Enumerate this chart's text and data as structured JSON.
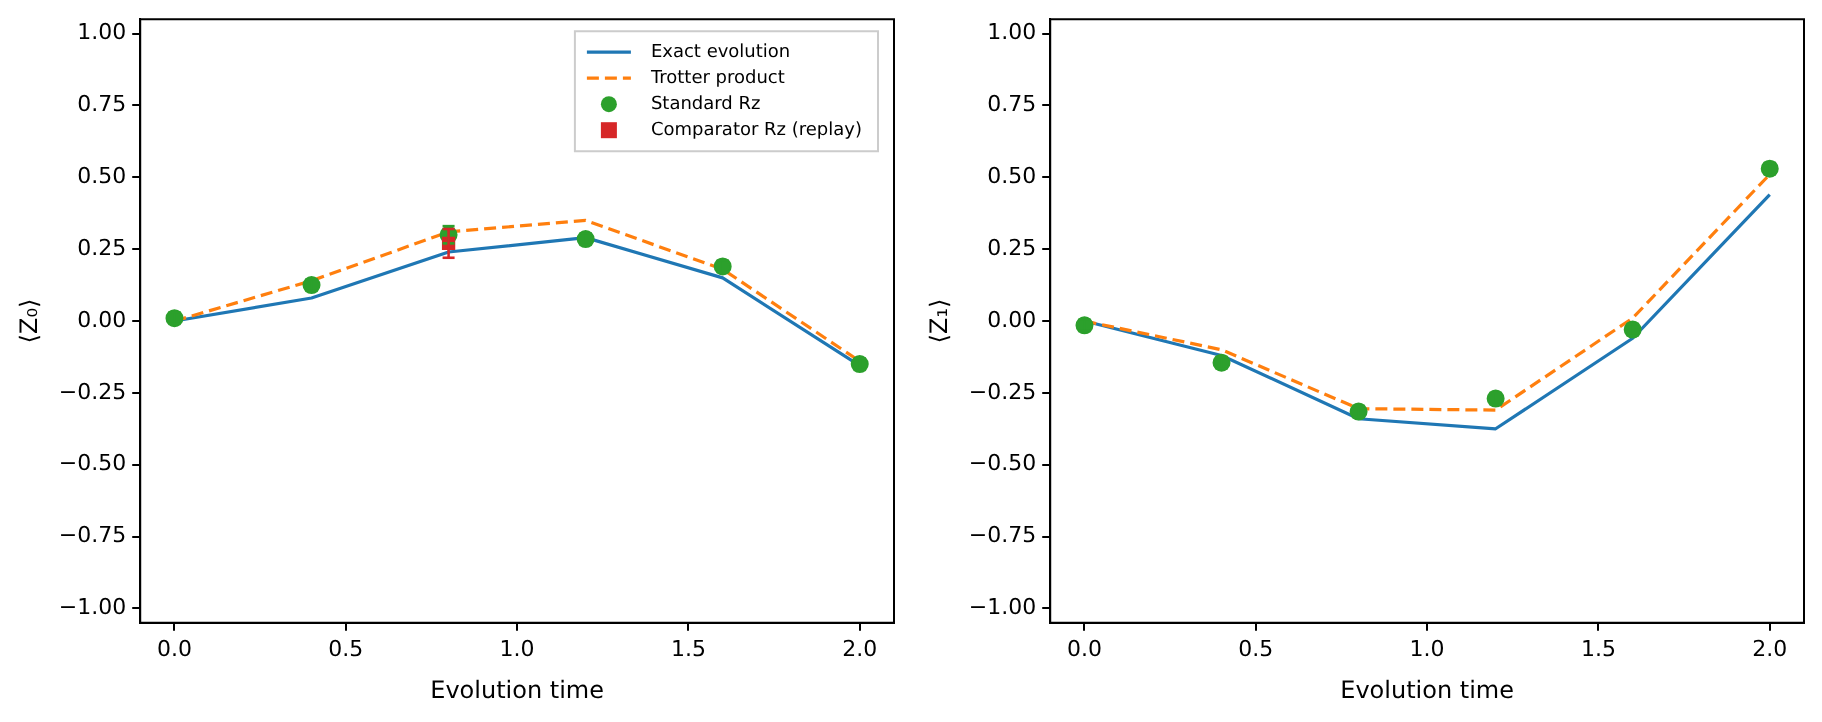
{
  "chart_data": [
    {
      "type": "line",
      "xlabel": "Evolution time",
      "ylabel": "⟨Z₀⟩",
      "x": [
        0,
        0.4,
        0.8,
        1.2,
        1.6,
        2.0
      ],
      "series": [
        {
          "name": "Exact evolution",
          "color": "#1f77b4",
          "values": [
            0.0,
            0.08,
            0.24,
            0.29,
            0.15,
            -0.155
          ],
          "marker": "none",
          "line_style": "solid"
        },
        {
          "name": "Trotter product",
          "color": "#ff7f0e",
          "values": [
            0.0,
            0.14,
            0.31,
            0.35,
            0.18,
            -0.14
          ],
          "marker": "none",
          "line_style": "dashed"
        },
        {
          "name": "Standard Rz",
          "type": "scatter",
          "color": "#2ca02c",
          "values": [
            0.01,
            0.125,
            0.3,
            0.285,
            0.19,
            -0.15
          ],
          "errors": [
            0.02,
            0.02,
            0.03,
            0.02,
            0.02,
            0.02
          ],
          "marker": "circle"
        },
        {
          "name": "Comparator Rz (replay)",
          "type": "scatter",
          "color": "#d62728",
          "x": [
            0.8
          ],
          "values": [
            0.27
          ],
          "errors": [
            0.05
          ],
          "marker": "square"
        }
      ],
      "xlim": [
        -0.1,
        2.1
      ],
      "xticks": [
        {
          "value": 0,
          "label": "0.0"
        },
        {
          "value": 0.5,
          "label": "0.5"
        },
        {
          "value": 1,
          "label": "1.0"
        },
        {
          "value": 1.5,
          "label": "1.5"
        },
        {
          "value": 2,
          "label": "2.0"
        }
      ],
      "ylim": [
        -1.05,
        1.05
      ],
      "yticks": [
        {
          "value": -1,
          "label": "−1.00"
        },
        {
          "value": -0.75,
          "label": "−0.75"
        },
        {
          "value": -0.5,
          "label": "−0.50"
        },
        {
          "value": -0.25,
          "label": "−0.25"
        },
        {
          "value": 0,
          "label": "0.00"
        },
        {
          "value": 0.25,
          "label": "0.25"
        },
        {
          "value": 0.5,
          "label": "0.50"
        },
        {
          "value": 0.75,
          "label": "0.75"
        },
        {
          "value": 1,
          "label": "1.00"
        }
      ],
      "grid": false,
      "legend": "top right"
    },
    {
      "type": "line",
      "xlabel": "Evolution time",
      "ylabel": "⟨Z₁⟩",
      "x": [
        0,
        0.4,
        0.8,
        1.2,
        1.6,
        2.0
      ],
      "series": [
        {
          "color": "#1f77b4",
          "values": [
            0.0,
            -0.12,
            -0.34,
            -0.375,
            -0.06,
            0.44
          ],
          "marker": "none",
          "line_style": "solid"
        },
        {
          "color": "#ff7f0e",
          "values": [
            0.0,
            -0.1,
            -0.305,
            -0.31,
            0.01,
            0.51
          ],
          "marker": "none",
          "line_style": "dashed"
        },
        {
          "type": "scatter",
          "color": "#2ca02c",
          "values": [
            -0.015,
            -0.145,
            -0.315,
            -0.27,
            -0.03,
            0.53
          ],
          "errors": [
            0.02,
            0.02,
            0.02,
            0.02,
            0.02,
            0.02
          ],
          "marker": "circle"
        }
      ],
      "xlim": [
        -0.1,
        2.1
      ],
      "xticks": [
        {
          "value": 0,
          "label": "0.0"
        },
        {
          "value": 0.5,
          "label": "0.5"
        },
        {
          "value": 1,
          "label": "1.0"
        },
        {
          "value": 1.5,
          "label": "1.5"
        },
        {
          "value": 2,
          "label": "2.0"
        }
      ],
      "ylim": [
        -1.05,
        1.05
      ],
      "yticks": [
        {
          "value": -1,
          "label": "−1.00"
        },
        {
          "value": -0.75,
          "label": "−0.75"
        },
        {
          "value": -0.5,
          "label": "−0.50"
        },
        {
          "value": -0.25,
          "label": "−0.25"
        },
        {
          "value": 0,
          "label": "0.00"
        },
        {
          "value": 0.25,
          "label": "0.25"
        },
        {
          "value": 0.5,
          "label": "0.50"
        },
        {
          "value": 0.75,
          "label": "0.75"
        },
        {
          "value": 1,
          "label": "1.00"
        }
      ],
      "grid": false,
      "legend": false
    }
  ]
}
